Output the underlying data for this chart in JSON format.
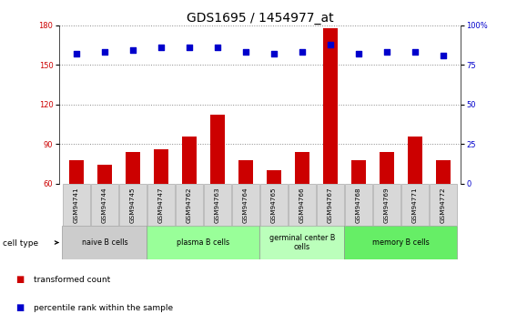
{
  "title": "GDS1695 / 1454977_at",
  "samples": [
    "GSM94741",
    "GSM94744",
    "GSM94745",
    "GSM94747",
    "GSM94762",
    "GSM94763",
    "GSM94764",
    "GSM94765",
    "GSM94766",
    "GSM94767",
    "GSM94768",
    "GSM94769",
    "GSM94771",
    "GSM94772"
  ],
  "transformed_count": [
    78,
    74,
    84,
    86,
    96,
    112,
    78,
    70,
    84,
    178,
    78,
    84,
    96,
    78
  ],
  "percentile_rank": [
    82,
    83,
    84,
    86,
    86,
    86,
    83,
    82,
    83,
    88,
    82,
    83,
    83,
    81
  ],
  "bar_color": "#cc0000",
  "dot_color": "#0000cc",
  "ylim_left": [
    60,
    180
  ],
  "ylim_right": [
    0,
    100
  ],
  "yticks_left": [
    60,
    90,
    120,
    150,
    180
  ],
  "yticks_right": [
    0,
    25,
    50,
    75,
    100
  ],
  "yticklabels_right": [
    "0",
    "25",
    "50",
    "75",
    "100%"
  ],
  "cell_type_groups": [
    {
      "label": "naive B cells",
      "start": 0,
      "end": 2,
      "color": "#cccccc"
    },
    {
      "label": "plasma B cells",
      "start": 3,
      "end": 6,
      "color": "#99ff99"
    },
    {
      "label": "germinal center B\ncells",
      "start": 7,
      "end": 9,
      "color": "#bbffbb"
    },
    {
      "label": "memory B cells",
      "start": 10,
      "end": 13,
      "color": "#66ee66"
    }
  ],
  "legend_items": [
    {
      "label": "transformed count",
      "color": "#cc0000"
    },
    {
      "label": "percentile rank within the sample",
      "color": "#0000cc"
    }
  ],
  "grid_color": "#888888",
  "title_fontsize": 10,
  "tick_fontsize": 6,
  "bar_width": 0.5
}
